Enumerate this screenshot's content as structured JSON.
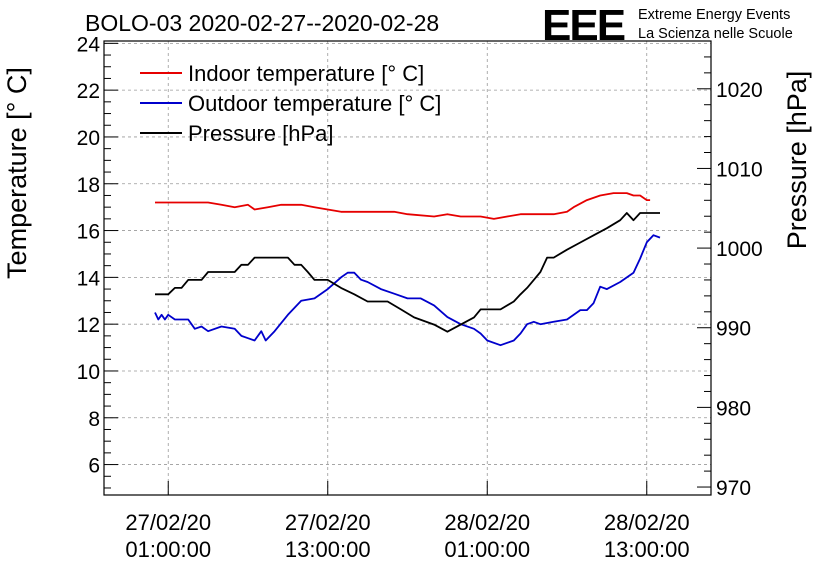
{
  "chart_data": {
    "type": "line",
    "title": "BOLO-03 2020-02-27--2020-02-28",
    "ylabel": "Temperature [° C]",
    "y2label": "Pressure [hPa]",
    "ylim": [
      4.7,
      24.1
    ],
    "y2lim": [
      969,
      1026
    ],
    "yticks": [
      "6",
      "8",
      "10",
      "12",
      "14",
      "16",
      "18",
      "20",
      "22",
      "24"
    ],
    "y2ticks": [
      "970",
      "980",
      "990",
      "1000",
      "1010",
      "1020"
    ],
    "xlim": [
      "2020-02-26T20:10:00",
      "2020-02-28T17:50:00"
    ],
    "xticks": [
      {
        "at": "2020-02-27T01:00:00",
        "line1": "27/02/20",
        "line2": "01:00:00"
      },
      {
        "at": "2020-02-27T13:00:00",
        "line1": "27/02/20",
        "line2": "13:00:00"
      },
      {
        "at": "2020-02-28T01:00:00",
        "line1": "28/02/20",
        "line2": "01:00:00"
      },
      {
        "at": "2020-02-28T13:00:00",
        "line1": "28/02/20",
        "line2": "13:00:00"
      }
    ],
    "grid": true,
    "legend": "top-left",
    "series": [
      {
        "name": "Indoor temperature [° C]",
        "axis": "left",
        "color": "#e60000",
        "points": [
          [
            "2020-02-27T00:00",
            17.2
          ],
          [
            "2020-02-27T02:00",
            17.2
          ],
          [
            "2020-02-27T04:00",
            17.2
          ],
          [
            "2020-02-27T05:00",
            17.1
          ],
          [
            "2020-02-27T06:00",
            17.0
          ],
          [
            "2020-02-27T07:00",
            17.1
          ],
          [
            "2020-02-27T07:30",
            16.9
          ],
          [
            "2020-02-27T08:30",
            17.0
          ],
          [
            "2020-02-27T09:30",
            17.1
          ],
          [
            "2020-02-27T11:00",
            17.1
          ],
          [
            "2020-02-27T12:00",
            17.0
          ],
          [
            "2020-02-27T13:00",
            16.9
          ],
          [
            "2020-02-27T14:00",
            16.8
          ],
          [
            "2020-02-27T16:00",
            16.8
          ],
          [
            "2020-02-27T18:00",
            16.8
          ],
          [
            "2020-02-27T19:00",
            16.7
          ],
          [
            "2020-02-27T21:00",
            16.6
          ],
          [
            "2020-02-27T22:00",
            16.7
          ],
          [
            "2020-02-27T23:00",
            16.6
          ],
          [
            "2020-02-28T00:30",
            16.6
          ],
          [
            "2020-02-28T01:30",
            16.5
          ],
          [
            "2020-02-28T02:30",
            16.6
          ],
          [
            "2020-02-28T03:30",
            16.7
          ],
          [
            "2020-02-28T06:00",
            16.7
          ],
          [
            "2020-02-28T07:00",
            16.8
          ],
          [
            "2020-02-28T07:30",
            17.0
          ],
          [
            "2020-02-28T08:30",
            17.3
          ],
          [
            "2020-02-28T09:30",
            17.5
          ],
          [
            "2020-02-28T10:30",
            17.6
          ],
          [
            "2020-02-28T11:30",
            17.6
          ],
          [
            "2020-02-28T12:00",
            17.5
          ],
          [
            "2020-02-28T12:30",
            17.5
          ],
          [
            "2020-02-28T13:00",
            17.3
          ],
          [
            "2020-02-28T13:15",
            17.3
          ]
        ]
      },
      {
        "name": "Outdoor temperature [° C]",
        "axis": "left",
        "color": "#0000cc",
        "points": [
          [
            "2020-02-27T00:00",
            12.5
          ],
          [
            "2020-02-27T00:15",
            12.2
          ],
          [
            "2020-02-27T00:30",
            12.4
          ],
          [
            "2020-02-27T00:45",
            12.2
          ],
          [
            "2020-02-27T01:00",
            12.4
          ],
          [
            "2020-02-27T01:30",
            12.2
          ],
          [
            "2020-02-27T02:30",
            12.2
          ],
          [
            "2020-02-27T03:00",
            11.8
          ],
          [
            "2020-02-27T03:30",
            11.9
          ],
          [
            "2020-02-27T04:00",
            11.7
          ],
          [
            "2020-02-27T05:00",
            11.9
          ],
          [
            "2020-02-27T06:00",
            11.8
          ],
          [
            "2020-02-27T06:30",
            11.5
          ],
          [
            "2020-02-27T07:00",
            11.4
          ],
          [
            "2020-02-27T07:30",
            11.3
          ],
          [
            "2020-02-27T08:00",
            11.7
          ],
          [
            "2020-02-27T08:20",
            11.3
          ],
          [
            "2020-02-27T09:00",
            11.7
          ],
          [
            "2020-02-27T10:00",
            12.4
          ],
          [
            "2020-02-27T11:00",
            13.0
          ],
          [
            "2020-02-27T12:00",
            13.1
          ],
          [
            "2020-02-27T13:00",
            13.5
          ],
          [
            "2020-02-27T14:00",
            14.0
          ],
          [
            "2020-02-27T14:30",
            14.2
          ],
          [
            "2020-02-27T15:00",
            14.2
          ],
          [
            "2020-02-27T15:30",
            13.9
          ],
          [
            "2020-02-27T16:00",
            13.8
          ],
          [
            "2020-02-27T17:00",
            13.5
          ],
          [
            "2020-02-27T18:00",
            13.3
          ],
          [
            "2020-02-27T19:00",
            13.1
          ],
          [
            "2020-02-27T20:00",
            13.1
          ],
          [
            "2020-02-27T21:00",
            12.8
          ],
          [
            "2020-02-27T22:00",
            12.3
          ],
          [
            "2020-02-27T23:00",
            12.0
          ],
          [
            "2020-02-28T00:00",
            11.8
          ],
          [
            "2020-02-28T00:30",
            11.6
          ],
          [
            "2020-02-28T01:00",
            11.3
          ],
          [
            "2020-02-28T02:00",
            11.1
          ],
          [
            "2020-02-28T03:00",
            11.3
          ],
          [
            "2020-02-28T03:30",
            11.6
          ],
          [
            "2020-02-28T04:00",
            12.0
          ],
          [
            "2020-02-28T04:30",
            12.1
          ],
          [
            "2020-02-28T05:00",
            12.0
          ],
          [
            "2020-02-28T06:00",
            12.1
          ],
          [
            "2020-02-28T07:00",
            12.2
          ],
          [
            "2020-02-28T08:00",
            12.6
          ],
          [
            "2020-02-28T08:30",
            12.6
          ],
          [
            "2020-02-28T09:00",
            12.9
          ],
          [
            "2020-02-28T09:30",
            13.6
          ],
          [
            "2020-02-28T10:00",
            13.5
          ],
          [
            "2020-02-28T11:00",
            13.8
          ],
          [
            "2020-02-28T12:00",
            14.2
          ],
          [
            "2020-02-28T12:30",
            14.8
          ],
          [
            "2020-02-28T13:00",
            15.5
          ],
          [
            "2020-02-28T13:30",
            15.8
          ],
          [
            "2020-02-28T14:00",
            15.7
          ]
        ]
      },
      {
        "name": "Pressure [hPa]",
        "axis": "right",
        "color": "#000000",
        "points": [
          [
            "2020-02-27T00:00",
            994.2
          ],
          [
            "2020-02-27T01:00",
            994.2
          ],
          [
            "2020-02-27T01:30",
            995.0
          ],
          [
            "2020-02-27T02:00",
            995.0
          ],
          [
            "2020-02-27T02:30",
            996.0
          ],
          [
            "2020-02-27T03:30",
            996.0
          ],
          [
            "2020-02-27T04:00",
            997.0
          ],
          [
            "2020-02-27T06:00",
            997.0
          ],
          [
            "2020-02-27T06:30",
            997.9
          ],
          [
            "2020-02-27T07:00",
            997.9
          ],
          [
            "2020-02-27T07:30",
            998.8
          ],
          [
            "2020-02-27T10:00",
            998.8
          ],
          [
            "2020-02-27T10:30",
            997.9
          ],
          [
            "2020-02-27T11:00",
            997.9
          ],
          [
            "2020-02-27T11:30",
            997.0
          ],
          [
            "2020-02-27T12:00",
            996.0
          ],
          [
            "2020-02-27T13:00",
            996.0
          ],
          [
            "2020-02-27T14:00",
            995.0
          ],
          [
            "2020-02-27T15:00",
            994.2
          ],
          [
            "2020-02-27T16:00",
            993.3
          ],
          [
            "2020-02-27T17:30",
            993.3
          ],
          [
            "2020-02-27T18:30",
            992.3
          ],
          [
            "2020-02-27T19:30",
            991.3
          ],
          [
            "2020-02-27T21:00",
            990.4
          ],
          [
            "2020-02-27T22:00",
            989.5
          ],
          [
            "2020-02-27T23:00",
            990.4
          ],
          [
            "2020-02-28T00:00",
            991.3
          ],
          [
            "2020-02-28T00:30",
            992.3
          ],
          [
            "2020-02-28T02:00",
            992.3
          ],
          [
            "2020-02-28T03:00",
            993.3
          ],
          [
            "2020-02-28T03:30",
            994.2
          ],
          [
            "2020-02-28T04:00",
            995.0
          ],
          [
            "2020-02-28T04:30",
            996.0
          ],
          [
            "2020-02-28T05:00",
            997.0
          ],
          [
            "2020-02-28T05:30",
            998.8
          ],
          [
            "2020-02-28T06:00",
            998.8
          ],
          [
            "2020-02-28T07:00",
            999.8
          ],
          [
            "2020-02-28T08:00",
            1000.7
          ],
          [
            "2020-02-28T09:00",
            1001.6
          ],
          [
            "2020-02-28T10:00",
            1002.5
          ],
          [
            "2020-02-28T11:00",
            1003.5
          ],
          [
            "2020-02-28T11:30",
            1004.4
          ],
          [
            "2020-02-28T12:00",
            1003.5
          ],
          [
            "2020-02-28T12:30",
            1004.4
          ],
          [
            "2020-02-28T13:00",
            1004.4
          ],
          [
            "2020-02-28T14:00",
            1004.4
          ]
        ]
      }
    ]
  },
  "logo": {
    "mark": "EEE",
    "line1": "Extreme Energy Events",
    "line2": "La Scienza nelle Scuole",
    "color": "#1a1aff"
  }
}
